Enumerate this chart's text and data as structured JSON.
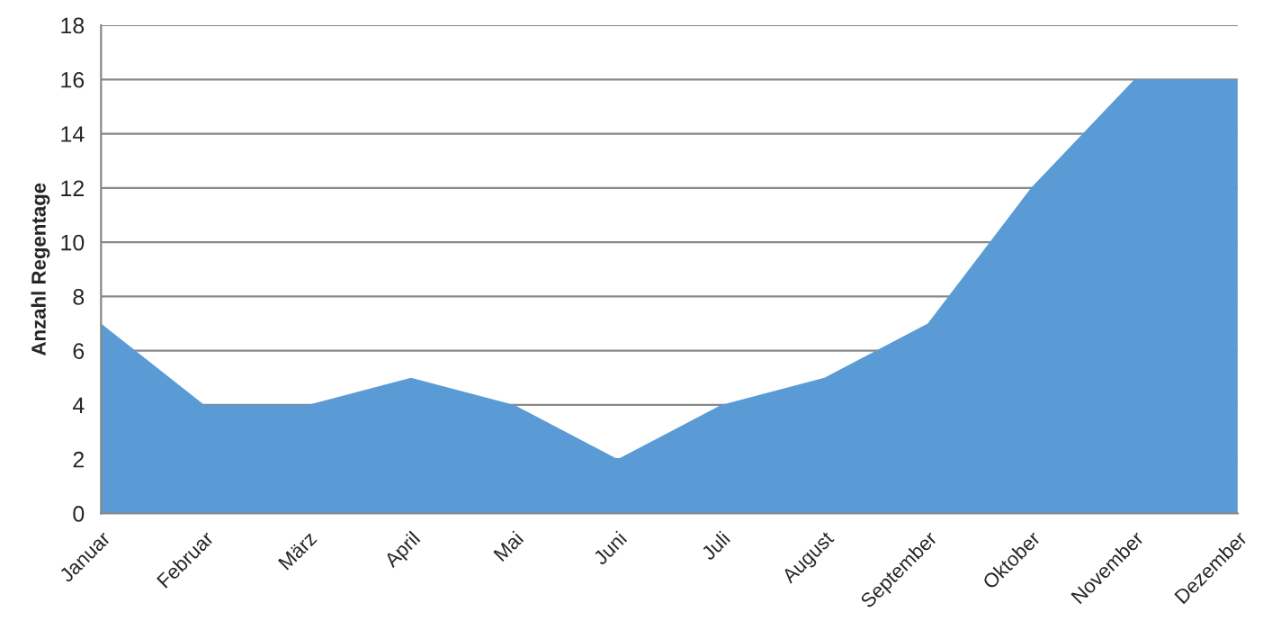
{
  "chart_data": {
    "type": "area",
    "ylabel": "Anzahl Regentage",
    "categories": [
      "Januar",
      "Februar",
      "März",
      "April",
      "Mai",
      "Juni",
      "Juli",
      "August",
      "September",
      "Oktober",
      "November",
      "Dezember"
    ],
    "series": [
      {
        "color": "#5b9bd5",
        "values": [
          7,
          4,
          4,
          5,
          4,
          2,
          4,
          5,
          7,
          12,
          16,
          16
        ]
      }
    ],
    "ylim": [
      0,
      18
    ],
    "yticks": [
      0,
      2,
      4,
      6,
      8,
      10,
      12,
      14,
      16,
      18
    ],
    "grid": "y",
    "legend": false
  }
}
